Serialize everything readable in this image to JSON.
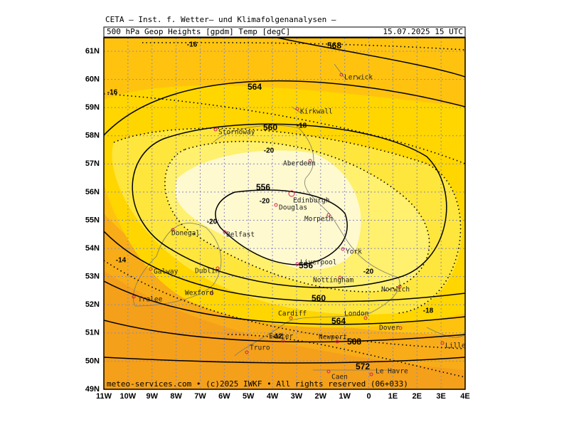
{
  "header": "CETA – Inst. f. Wetter– und Klimafolgenanalysen –",
  "title_left": "500 hPa Geop Heights [gpdm] Temp [degC]",
  "title_right": "15.07.2025 15 UTC",
  "lat_labels": [
    "61N",
    "60N",
    "59N",
    "58N",
    "57N",
    "56N",
    "55N",
    "54N",
    "53N",
    "52N",
    "51N",
    "50N",
    "49N"
  ],
  "lon_labels": [
    "11W",
    "10W",
    "9W",
    "8W",
    "7W",
    "6W",
    "5W",
    "4W",
    "3W",
    "2W",
    "1W",
    "0",
    "1E",
    "2E",
    "3E",
    "4E"
  ],
  "cities": [
    "Lerwick",
    "Kirkwall",
    "Stornoway",
    "Aberdeen",
    "Edinburgh",
    "Douglas",
    "Morpeth",
    "Donegal",
    "Belfast",
    "York",
    "Liverpool",
    "Galway",
    "Dublin",
    "Nottingham",
    "Norwich",
    "Wexford",
    "Tralee",
    "Cardiff",
    "London",
    "Dover",
    "Exeter",
    "Newport",
    "Truro",
    "Lille",
    "Le Havre",
    "Caen"
  ],
  "height_labels": [
    568,
    564,
    560,
    556,
    556,
    560,
    564,
    568,
    572
  ],
  "temp_labels": [
    -16,
    -16,
    -18,
    -20,
    -20,
    -20,
    -20,
    -18,
    -14,
    -12
  ],
  "footer": "meteo-services.com • (c)2025 IWKF • All rights reserved (06+033)"
}
